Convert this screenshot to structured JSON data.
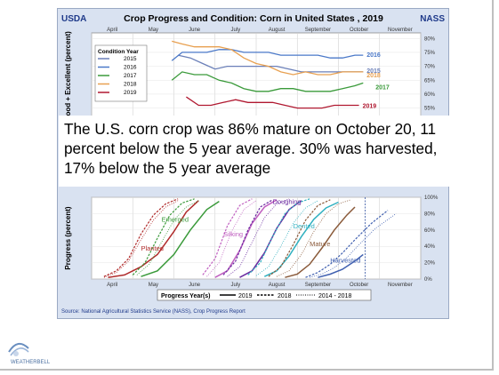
{
  "header": {
    "left_org": "USDA",
    "title": "Crop Progress and Condition: Corn in United States , 2019",
    "right_org": "NASS"
  },
  "caption": "The U.S. corn crop was 86% mature on October 20, 11 percent below the 5 year average. 30% was harvested, 17% below the 5 year average",
  "source": "Source: National Agricultural Statistics Service (NASS), Crop Progress Report",
  "logo_text": "WEATHERBELL",
  "colors": {
    "panel": "#d9e2f1",
    "plot_bg": "#ffffff",
    "cond_2015": "#6a7fb8",
    "cond_2016": "#4a78c8",
    "cond_2017": "#3a9a3a",
    "cond_2018": "#e8a050",
    "cond_2019": "#b01830"
  },
  "chart_data": [
    {
      "type": "line",
      "title": "",
      "ylabel": "Good + Excellent (percent)",
      "x_months": [
        "April",
        "May",
        "June",
        "July",
        "August",
        "September",
        "October",
        "November"
      ],
      "y_ticks": [
        "80%",
        "75%",
        "70%",
        "65%",
        "60%",
        "55%"
      ],
      "ylim": [
        52,
        82
      ],
      "xlim": [
        0,
        8
      ],
      "legend_title": "Condition Year",
      "legend_position": "top-left",
      "series": [
        {
          "name": "2015",
          "color": "#6a7fb8",
          "x": [
            2.1,
            2.4,
            2.7,
            3.0,
            3.3,
            3.6,
            3.9,
            4.2,
            4.5,
            4.8,
            5.1,
            5.4,
            5.7,
            6.0,
            6.3,
            6.6
          ],
          "y": [
            74,
            73,
            71,
            69,
            70,
            70,
            70,
            70,
            70,
            69,
            68,
            68,
            68,
            68,
            68,
            68
          ]
        },
        {
          "name": "2016",
          "color": "#4a78c8",
          "x": [
            1.95,
            2.2,
            2.5,
            2.8,
            3.1,
            3.4,
            3.7,
            4.0,
            4.3,
            4.6,
            4.9,
            5.2,
            5.5,
            5.8,
            6.1,
            6.4,
            6.6
          ],
          "y": [
            72,
            75,
            75,
            75,
            76,
            76,
            75,
            75,
            75,
            74,
            74,
            74,
            74,
            73,
            73,
            74,
            74
          ]
        },
        {
          "name": "2017",
          "color": "#3a9a3a",
          "x": [
            1.95,
            2.2,
            2.5,
            2.8,
            3.1,
            3.4,
            3.7,
            4.0,
            4.3,
            4.6,
            4.9,
            5.2,
            5.5,
            5.8,
            6.1,
            6.4,
            6.6
          ],
          "y": [
            65,
            68,
            67,
            67,
            65,
            64,
            62,
            61,
            61,
            62,
            62,
            61,
            61,
            61,
            62,
            63,
            64
          ]
        },
        {
          "name": "2018",
          "color": "#e8a050",
          "x": [
            1.95,
            2.2,
            2.5,
            2.8,
            3.1,
            3.4,
            3.7,
            4.0,
            4.3,
            4.6,
            4.9,
            5.2,
            5.5,
            5.8,
            6.1,
            6.4,
            6.6
          ],
          "y": [
            79,
            78,
            77,
            77,
            77,
            76,
            73,
            71,
            70,
            68,
            67,
            68,
            67,
            67,
            68,
            68,
            68
          ]
        },
        {
          "name": "2019",
          "color": "#b01830",
          "x": [
            2.3,
            2.6,
            2.9,
            3.2,
            3.5,
            3.8,
            4.1,
            4.4,
            4.7,
            5.0,
            5.3,
            5.6,
            5.9,
            6.2,
            6.5
          ],
          "y": [
            59,
            56,
            56,
            57,
            58,
            57,
            57,
            57,
            56,
            55,
            55,
            55,
            56,
            56,
            56
          ]
        }
      ],
      "end_labels": [
        "2016",
        "2015",
        "2018",
        "2017",
        "2019"
      ]
    },
    {
      "type": "line",
      "title": "",
      "ylabel": "Progress (percent)",
      "x_months": [
        "April",
        "May",
        "June",
        "July",
        "August",
        "September",
        "October",
        "November"
      ],
      "y_ticks": [
        "100%",
        "80%",
        "60%",
        "40%",
        "20%",
        "0%"
      ],
      "ylim": [
        0,
        100
      ],
      "xlim": [
        0,
        8
      ],
      "legend_title": "Progress Year(s)",
      "legend_position": "bottom",
      "legend_entries": [
        "2019",
        "2018",
        "2014 - 2018"
      ],
      "stages": [
        {
          "name": "Planted",
          "color": "#b02a2a",
          "label_x": 1.2,
          "label_y": 35,
          "y2019_x": [
            0.4,
            0.8,
            1.2,
            1.6,
            2.0,
            2.3,
            2.6
          ],
          "y2019_y": [
            2,
            5,
            15,
            30,
            58,
            82,
            96
          ],
          "y2018_x": [
            0.3,
            0.6,
            0.9,
            1.2,
            1.5,
            1.8,
            2.1
          ],
          "y2018_y": [
            3,
            10,
            25,
            55,
            78,
            92,
            98
          ],
          "avg_x": [
            0.3,
            0.6,
            0.9,
            1.2,
            1.5,
            1.8,
            2.1
          ],
          "avg_y": [
            2,
            8,
            22,
            48,
            72,
            88,
            96
          ]
        },
        {
          "name": "Emerged",
          "color": "#3a9a3a",
          "label_x": 1.7,
          "label_y": 70,
          "y2019_x": [
            1.2,
            1.6,
            2.0,
            2.4,
            2.8,
            3.1
          ],
          "y2019_y": [
            3,
            10,
            30,
            60,
            85,
            95
          ],
          "y2018_x": [
            1.0,
            1.3,
            1.6,
            1.9,
            2.2,
            2.5
          ],
          "y2018_y": [
            5,
            20,
            50,
            78,
            93,
            98
          ],
          "avg_x": [
            1.1,
            1.4,
            1.7,
            2.0,
            2.3,
            2.6
          ],
          "avg_y": [
            5,
            18,
            45,
            72,
            88,
            96
          ]
        },
        {
          "name": "Silking",
          "color": "#c060c0",
          "label_x": 3.2,
          "label_y": 52,
          "y2019_x": [
            3.0,
            3.3,
            3.6,
            3.9,
            4.2,
            4.5
          ],
          "y2019_y": [
            2,
            10,
            35,
            68,
            88,
            97
          ],
          "y2018_x": [
            2.7,
            3.0,
            3.3,
            3.6,
            3.9
          ],
          "y2018_y": [
            5,
            25,
            65,
            90,
            98
          ],
          "avg_x": [
            2.8,
            3.1,
            3.4,
            3.7,
            4.0
          ],
          "avg_y": [
            3,
            20,
            58,
            85,
            96
          ]
        },
        {
          "name": "Doughing",
          "color": "#6a2aa0",
          "label_x": 4.4,
          "label_y": 92,
          "y2019_x": [
            3.6,
            3.9,
            4.2,
            4.5,
            4.8,
            5.1
          ],
          "y2019_y": [
            2,
            10,
            32,
            62,
            85,
            96
          ],
          "y2018_x": [
            3.2,
            3.5,
            3.8,
            4.1,
            4.4
          ],
          "y2018_y": [
            5,
            22,
            60,
            88,
            97
          ],
          "avg_x": [
            3.3,
            3.6,
            3.9,
            4.2,
            4.5,
            4.8
          ],
          "avg_y": [
            3,
            15,
            45,
            75,
            92,
            98
          ]
        },
        {
          "name": "Dented",
          "color": "#30b0c0",
          "label_x": 4.9,
          "label_y": 62,
          "y2019_x": [
            4.2,
            4.5,
            4.8,
            5.1,
            5.4,
            5.7,
            6.0
          ],
          "y2019_y": [
            3,
            10,
            28,
            52,
            73,
            87,
            94
          ],
          "y2018_x": [
            3.8,
            4.1,
            4.4,
            4.7,
            5.0,
            5.3
          ],
          "y2018_y": [
            5,
            20,
            52,
            80,
            93,
            98
          ],
          "avg_x": [
            4.0,
            4.3,
            4.6,
            4.9,
            5.2,
            5.5
          ],
          "avg_y": [
            4,
            15,
            40,
            68,
            87,
            96
          ]
        },
        {
          "name": "Mature",
          "color": "#8a5a3a",
          "label_x": 5.3,
          "label_y": 40,
          "y2019_x": [
            4.7,
            5.0,
            5.3,
            5.6,
            5.9,
            6.2,
            6.4
          ],
          "y2019_y": [
            2,
            6,
            18,
            38,
            60,
            78,
            88
          ],
          "y2018_x": [
            4.3,
            4.6,
            4.9,
            5.2,
            5.5,
            5.8
          ],
          "y2018_y": [
            3,
            15,
            42,
            72,
            90,
            97
          ],
          "avg_x": [
            4.5,
            4.8,
            5.1,
            5.4,
            5.7,
            6.0,
            6.3
          ],
          "avg_y": [
            3,
            10,
            30,
            58,
            80,
            92,
            97
          ]
        },
        {
          "name": "Harvested",
          "color": "#4060b0",
          "label_x": 5.8,
          "label_y": 20,
          "y2019_x": [
            5.5,
            5.8,
            6.1,
            6.4,
            6.6
          ],
          "y2019_y": [
            2,
            6,
            12,
            22,
            30
          ],
          "y2018_x": [
            5.2,
            5.5,
            5.8,
            6.1,
            6.4,
            6.8,
            7.2
          ],
          "y2018_y": [
            2,
            8,
            18,
            32,
            48,
            68,
            84
          ],
          "avg_x": [
            5.3,
            5.6,
            5.9,
            6.2,
            6.5,
            6.9,
            7.4
          ],
          "avg_y": [
            2,
            6,
            14,
            26,
            42,
            62,
            80
          ]
        }
      ]
    }
  ]
}
